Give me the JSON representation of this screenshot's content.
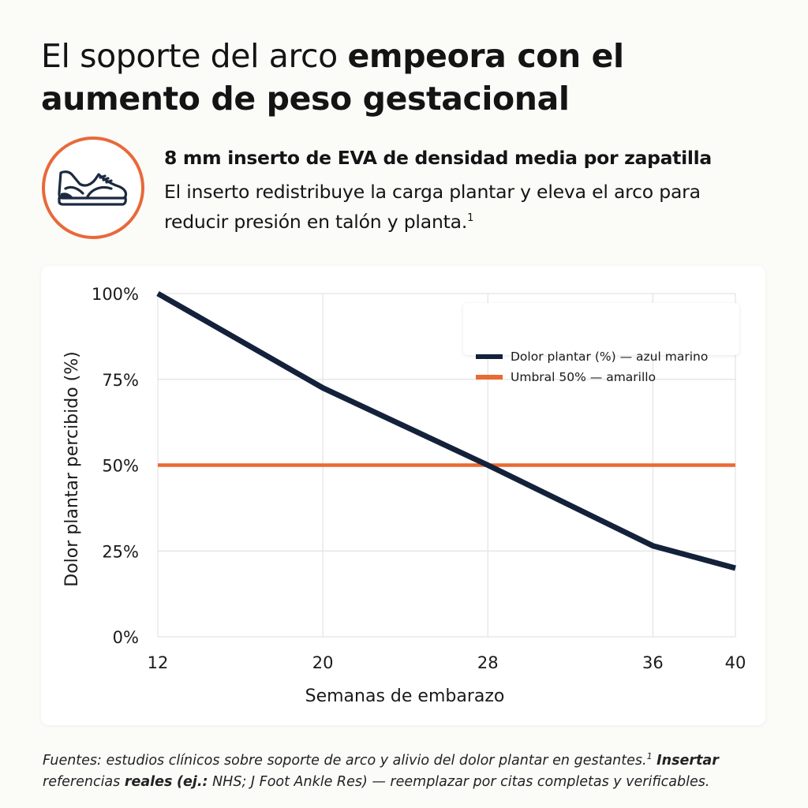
{
  "header": {
    "title_light": "El soporte del arco ",
    "title_bold_1": "empeora con el",
    "title_bold_2": "aumento de peso gestacional",
    "subtitle_bold": "8 mm inserto de EVA de densidad media por zapatilla",
    "subtitle_text": "El inserto redistribuye la carga plantar y eleva el arco para reducir presión en talón y planta.",
    "subtitle_footnote": "1"
  },
  "icon": {
    "name": "sneaker-icon",
    "ring_color": "#e8693a",
    "stroke_color": "#1b2a40"
  },
  "chart_data": {
    "type": "line",
    "xlabel": "Semanas de embarazo",
    "ylabel": "Dolor plantar percibido (%)",
    "x_ticks": [
      12,
      20,
      28,
      36,
      40
    ],
    "y_ticks": [
      "0%",
      "25%",
      "50%",
      "75%",
      "100%"
    ],
    "xlim": [
      12,
      40
    ],
    "ylim": [
      0,
      100
    ],
    "grid": true,
    "legend_position": "top-right",
    "series": [
      {
        "name": "Dolor plantar (%) — azul marino",
        "color": "#13213a",
        "x": [
          12,
          20,
          28,
          36,
          40
        ],
        "y": [
          100,
          72.5,
          50,
          26.5,
          20
        ]
      },
      {
        "name": "Umbral 50% — amarillo",
        "color": "#ea6a33",
        "x": [
          12,
          40
        ],
        "y": [
          50,
          50
        ]
      }
    ]
  },
  "footer": {
    "line1_italic": "Fuentes: estudios clínicos sobre soporte de arco y alivio del dolor plantar en gestantes.",
    "footnote_mark": "1",
    "bold_1": "Insertar",
    "text_2": "referencias ",
    "bold_2": "reales",
    "text_3": " ",
    "bold_3": "(ej.:",
    "text_4": " NHS; J Foot Ankle Res) — reemplazar por citas completas y verificables."
  }
}
